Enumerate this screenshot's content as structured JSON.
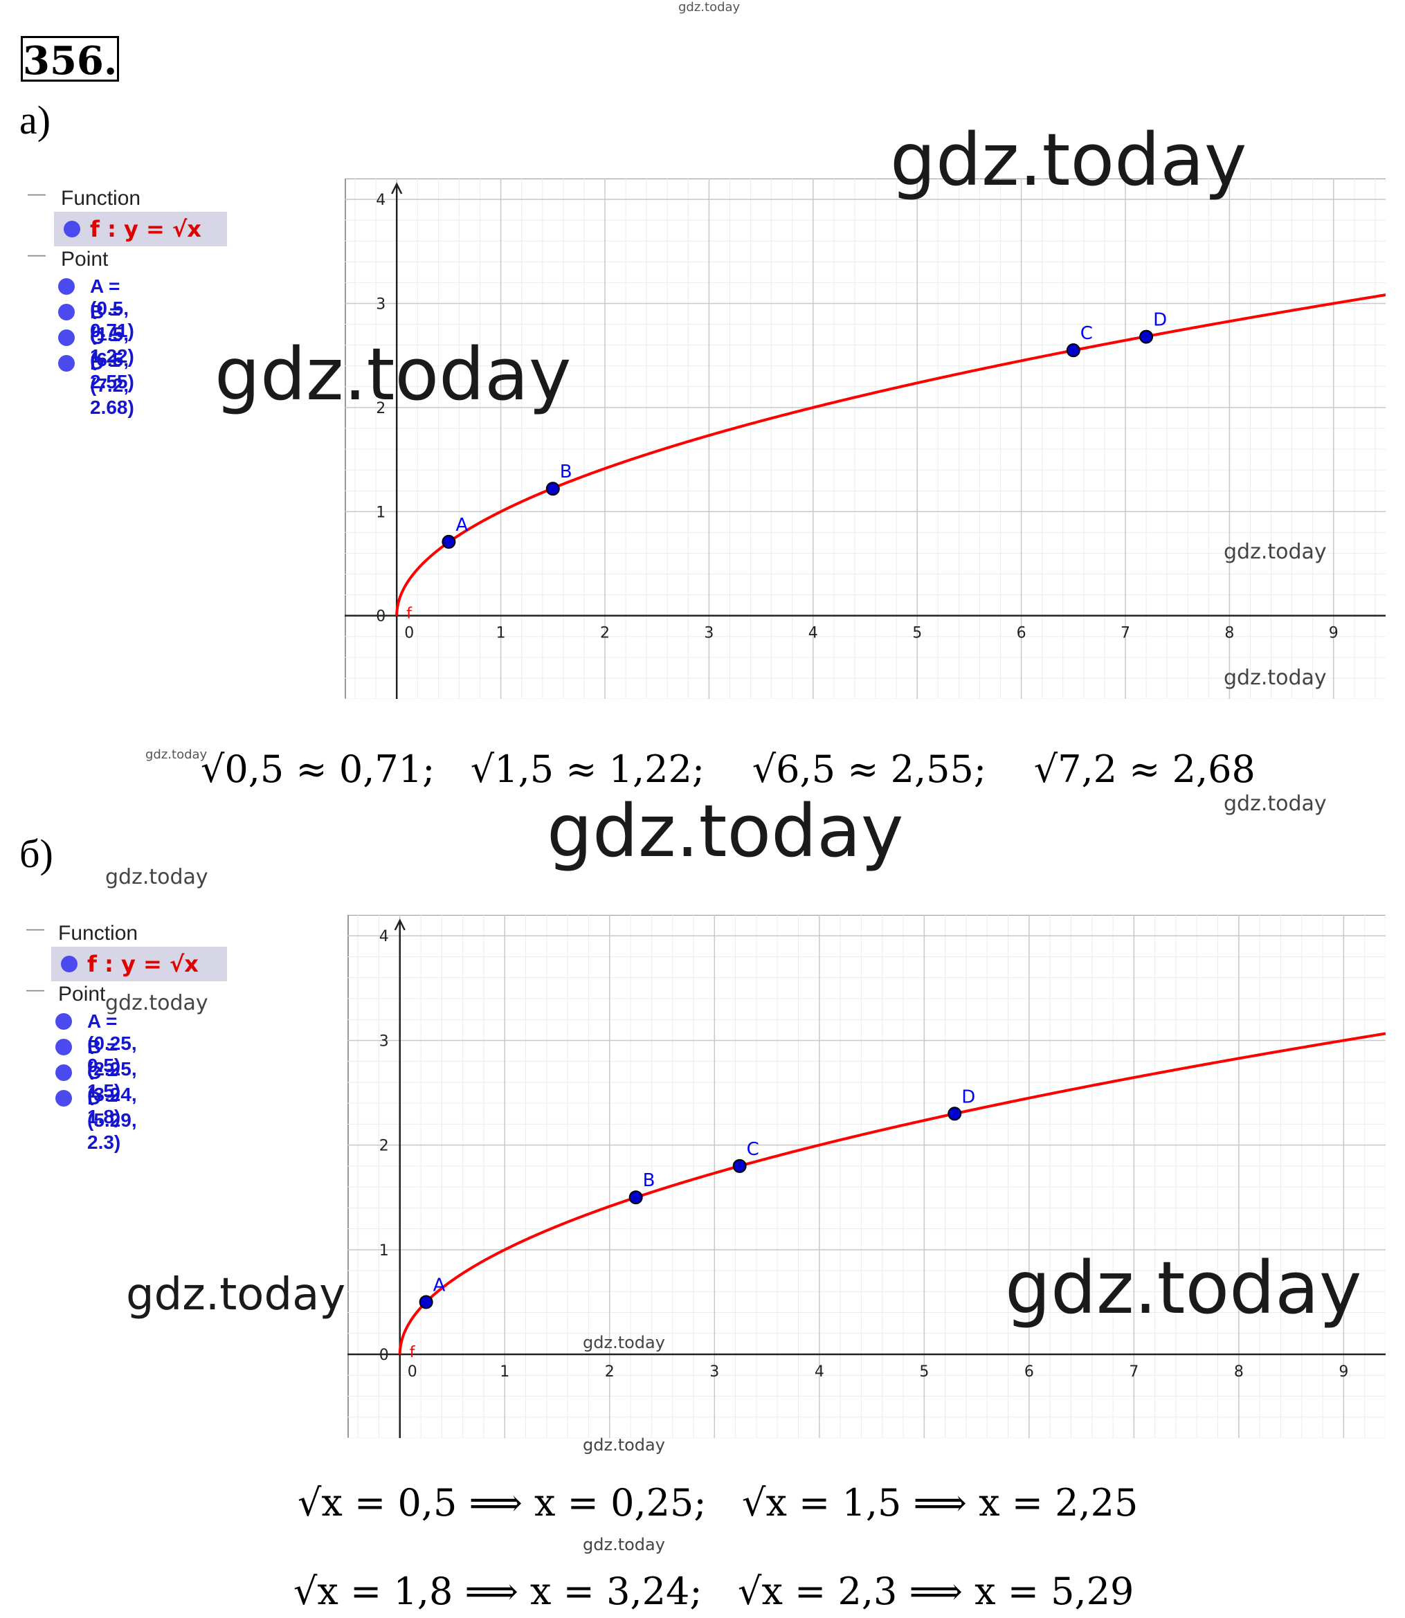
{
  "watermark": "gdz.today",
  "task_number": "356.",
  "parts": [
    {
      "label": "а)",
      "algebra": {
        "function_header": "Function",
        "function_label": "f : y = √x",
        "point_header": "Point",
        "points_text": [
          "A = (0.5, 0.71)",
          "B = (1.5, 1.22)",
          "C = (6.5, 2.55)",
          "D = (7.2, 2.68)"
        ]
      },
      "equations": [
        "√0,5 ≈ 0,71;",
        "√1,5 ≈ 1,22;",
        "√6,5 ≈ 2,55;",
        "√7,2 ≈ 2,68"
      ]
    },
    {
      "label": "б)",
      "algebra": {
        "function_header": "Function",
        "function_label": "f : y = √x",
        "point_header": "Point",
        "points_text": [
          "A = (0.25, 0.5)",
          "B = (2.25, 1.5)",
          "C = (3.24, 1.8)",
          "D = (5.29, 2.3)"
        ]
      },
      "equations": [
        "√x = 0,5 ⟹ x = 0,25;",
        "√x = 1,5 ⟹ x = 2,25",
        "√x = 1,8 ⟹ x = 3,24;",
        "√x = 2,3 ⟹ x = 5,29"
      ]
    }
  ],
  "chart_data": [
    {
      "type": "line",
      "function": "sqrt",
      "series": [
        {
          "name": "f"
        }
      ],
      "xlim": [
        -0.5,
        9.5
      ],
      "ylim": [
        -0.8,
        4.2
      ],
      "x_ticks": [
        0,
        1,
        2,
        3,
        4,
        5,
        6,
        7,
        8,
        9
      ],
      "y_ticks": [
        0,
        1,
        2,
        3,
        4
      ],
      "grid": true,
      "points": [
        {
          "label": "A",
          "x": 0.5,
          "y": 0.71
        },
        {
          "label": "B",
          "x": 1.5,
          "y": 1.22
        },
        {
          "label": "C",
          "x": 6.5,
          "y": 2.55
        },
        {
          "label": "D",
          "x": 7.2,
          "y": 2.68
        }
      ],
      "colors": {
        "curve": "#ff0000",
        "point": "#0000cc",
        "label": "#0000ff"
      }
    },
    {
      "type": "line",
      "function": "sqrt",
      "series": [
        {
          "name": "f"
        }
      ],
      "xlim": [
        -0.5,
        9.4
      ],
      "ylim": [
        -0.8,
        4.2
      ],
      "x_ticks": [
        0,
        1,
        2,
        3,
        4,
        5,
        6,
        7,
        8,
        9
      ],
      "y_ticks": [
        0,
        1,
        2,
        3,
        4
      ],
      "grid": true,
      "points": [
        {
          "label": "A",
          "x": 0.25,
          "y": 0.5
        },
        {
          "label": "B",
          "x": 2.25,
          "y": 1.5
        },
        {
          "label": "C",
          "x": 3.24,
          "y": 1.8
        },
        {
          "label": "D",
          "x": 5.29,
          "y": 2.3
        }
      ],
      "colors": {
        "curve": "#ff0000",
        "point": "#0000cc",
        "label": "#0000ff"
      }
    }
  ]
}
